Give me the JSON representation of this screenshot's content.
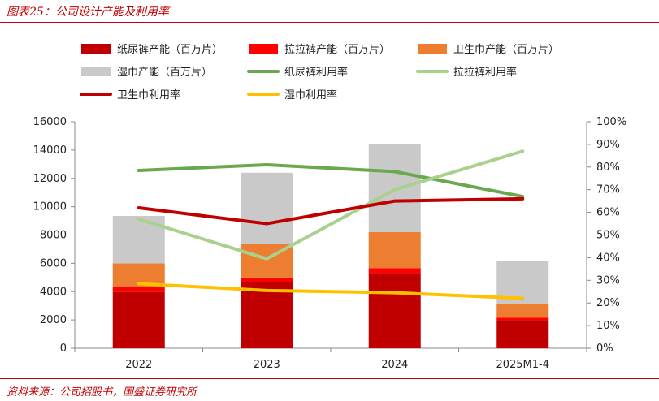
{
  "header": {
    "title": "图表25：公司设计产能及利用率"
  },
  "footer": {
    "source": "资料来源：公司招股书，国盛证券研究所"
  },
  "chart_data": {
    "type": "bar",
    "categories": [
      "2022",
      "2023",
      "2024",
      "2025M1-4"
    ],
    "ylim_left": [
      0,
      16000
    ],
    "ylim_right": [
      0,
      100
    ],
    "left_ticks": [
      "0",
      "2000",
      "4000",
      "6000",
      "8000",
      "10000",
      "12000",
      "14000",
      "16000"
    ],
    "right_ticks": [
      "0%",
      "10%",
      "20%",
      "30%",
      "40%",
      "50%",
      "60%",
      "70%",
      "80%",
      "90%",
      "100%"
    ],
    "bar_series": [
      {
        "name": "纸尿裤产能（百万片）",
        "color": "#c00000",
        "values": [
          4000,
          4700,
          5300,
          2000
        ]
      },
      {
        "name": "拉拉裤产能（百万片）",
        "color": "#ff0000",
        "values": [
          350,
          300,
          350,
          150
        ]
      },
      {
        "name": "卫生巾产能（百万片）",
        "color": "#ed7d31",
        "values": [
          1650,
          2350,
          2550,
          1000
        ]
      },
      {
        "name": "湿巾产能（百万片）",
        "color": "#c9c9c9",
        "values": [
          3350,
          5050,
          6200,
          3000
        ]
      }
    ],
    "line_series": [
      {
        "name": "纸尿裤利用率",
        "color": "#6aa84f",
        "values": [
          78.5,
          81,
          78,
          67
        ]
      },
      {
        "name": "拉拉裤利用率",
        "color": "#a9d18e",
        "values": [
          57,
          39.5,
          70,
          87
        ]
      },
      {
        "name": "卫生巾利用率",
        "color": "#c00000",
        "values": [
          62,
          55,
          65,
          66
        ]
      },
      {
        "name": "湿巾利用率",
        "color": "#ffc000",
        "values": [
          28.5,
          25.5,
          24.5,
          22
        ]
      }
    ],
    "legend_position": "top"
  }
}
